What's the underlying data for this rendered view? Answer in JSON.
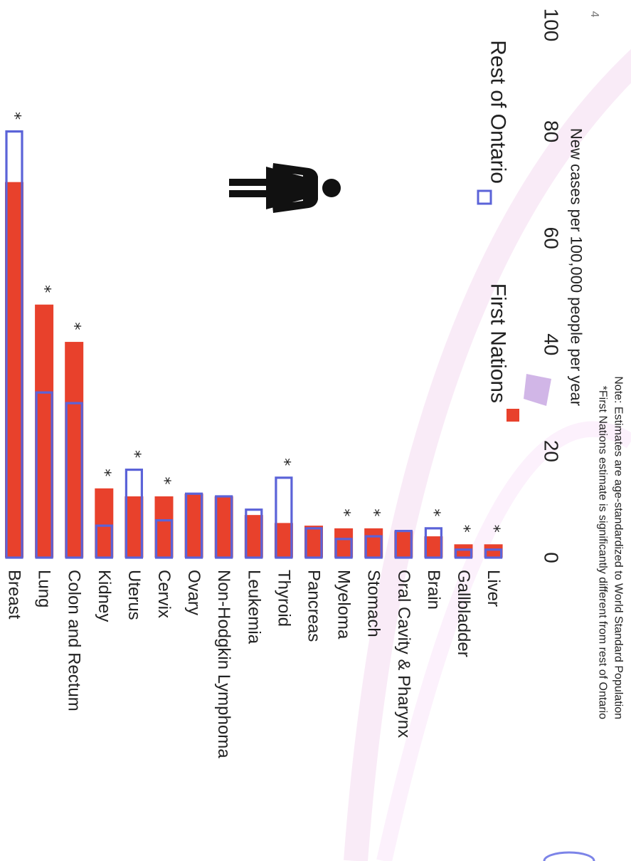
{
  "page_number": "4",
  "chart_data": {
    "type": "bar",
    "orientation": "rotated-90",
    "xlabel": "New cases per 100,000 people per year",
    "ylabel": "",
    "ylim": [
      0,
      100
    ],
    "ticks": [
      0,
      20,
      40,
      60,
      80,
      100
    ],
    "categories": [
      "Breast",
      "Lung",
      "Colon and Rectum",
      "Kidney",
      "Uterus",
      "Cervix",
      "Ovary",
      "Non-Hodgkin Lymphoma",
      "Leukemia",
      "Thyroid",
      "Pancreas",
      "Myeloma",
      "Stomach",
      "Oral Cavity & Pharynx",
      "Brain",
      "Gallbladder",
      "Liver"
    ],
    "series": [
      {
        "name": "First Nations",
        "style": "filled",
        "color": "#e8412c",
        "values": [
          70.5,
          47.5,
          40.5,
          13,
          11.5,
          11.5,
          12,
          11.5,
          8,
          6.5,
          6,
          5.5,
          5.5,
          5,
          4,
          2.5,
          2.5
        ]
      },
      {
        "name": "Rest of Ontario",
        "style": "outline",
        "color": "#5b63d8",
        "values": [
          80,
          31,
          29,
          6,
          16.5,
          7,
          12,
          11.5,
          9,
          15,
          5.5,
          3.5,
          4,
          5,
          5.5,
          1.5,
          1.5
        ]
      }
    ],
    "significant": [
      true,
      true,
      true,
      true,
      true,
      true,
      false,
      false,
      false,
      true,
      false,
      true,
      true,
      false,
      true,
      true,
      true
    ],
    "significance_marker": "*",
    "notes": [
      "*First Nations estimate is significantly different from rest of Ontario",
      "Note: Estimates are age-standardized to World Standard Population"
    ],
    "grid": false,
    "legend_position": "bottom",
    "female_icon": "female-figure-icon"
  }
}
